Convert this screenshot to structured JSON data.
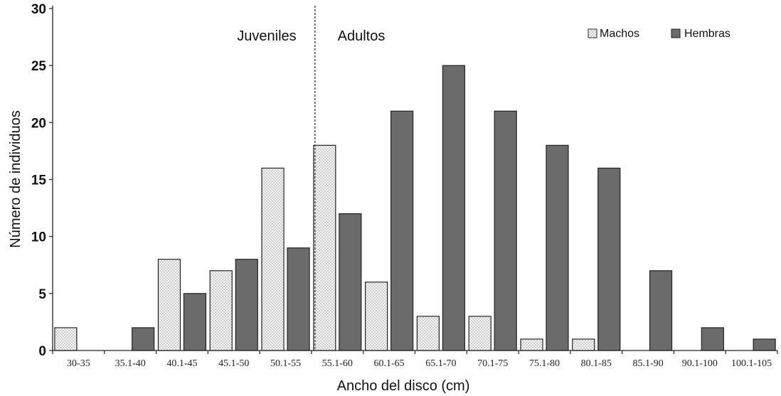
{
  "chart_data": {
    "type": "bar",
    "xlabel": "Ancho del disco (cm)",
    "ylabel": "Número de individuos",
    "ylim": [
      0,
      30
    ],
    "yticks": [
      0,
      5,
      10,
      15,
      20,
      25,
      30
    ],
    "categories": [
      "30-35",
      "35.1-40",
      "40.1-45",
      "45.1-50",
      "50.1-55",
      "55.1-60",
      "60.1-65",
      "65.1-70",
      "70.1-75",
      "75.1-80",
      "80.1-85",
      "85.1-90",
      "90.1-100",
      "100.1-105"
    ],
    "series": [
      {
        "name": "Machos",
        "color": "#f2f2f2",
        "pattern": "dotted",
        "values": [
          2,
          0,
          8,
          7,
          16,
          18,
          6,
          3,
          3,
          1,
          1,
          0,
          0,
          0
        ]
      },
      {
        "name": "Hembras",
        "color": "#6b6b6b",
        "values": [
          0,
          2,
          5,
          8,
          9,
          12,
          21,
          25,
          21,
          18,
          16,
          7,
          2,
          1
        ]
      }
    ],
    "legend_position": "top-right",
    "annotations": {
      "divider_category": "55.1-60",
      "left_label": "Juveniles",
      "right_label": "Adultos"
    },
    "grid": false
  }
}
